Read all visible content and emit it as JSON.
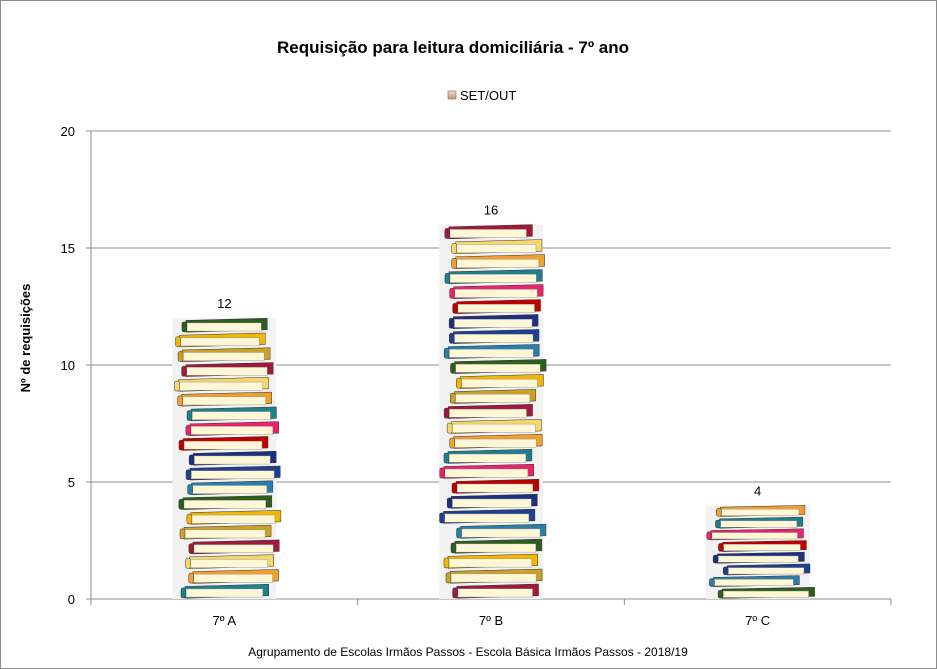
{
  "chart_data": {
    "type": "bar",
    "title": "Requisição para leitura domiciliária  - 7º ano",
    "ylabel": "Nº de requisições",
    "xlabel": "Agrupamento de Escolas Irmãos Passos - Escola Básica Irmãos Passos - 2018/19",
    "categories": [
      "7º A",
      "7º B",
      "7º C"
    ],
    "series": [
      {
        "name": "SET/OUT",
        "values": [
          12,
          16,
          4
        ]
      }
    ],
    "data_labels": [
      "12",
      "16",
      "4"
    ],
    "ylim": [
      0,
      20
    ],
    "yticks": [
      "0",
      "5",
      "10",
      "15",
      "20"
    ],
    "grid": true,
    "legend_position": "top",
    "book_colors": [
      "#1f7f8c",
      "#f2b705",
      "#c00000",
      "#9e1a3c",
      "#1f3f8f",
      "#f0a030",
      "#2e5e1e",
      "#e8246c",
      "#c9a227",
      "#1d2f80",
      "#f5d76e",
      "#2a7fa8"
    ]
  }
}
